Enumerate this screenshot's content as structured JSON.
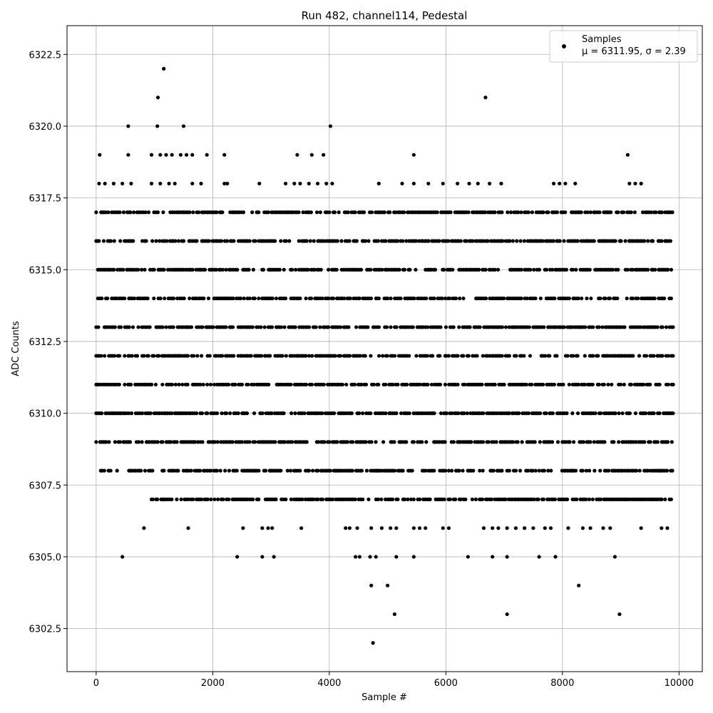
{
  "chart_data": {
    "type": "scatter",
    "title": "Run 482, channel114, Pedestal",
    "xlabel": "Sample #",
    "ylabel": "ADC Counts",
    "xlim": [
      -500,
      10400
    ],
    "ylim": [
      6301.0,
      6323.5
    ],
    "x_ticks": [
      0,
      2000,
      4000,
      6000,
      8000,
      10000
    ],
    "x_tick_labels": [
      "0",
      "2000",
      "4000",
      "6000",
      "8000",
      "10000"
    ],
    "y_ticks": [
      6302.5,
      6305.0,
      6307.5,
      6310.0,
      6312.5,
      6315.0,
      6317.5,
      6320.0,
      6322.5
    ],
    "y_tick_labels": [
      "6302.5",
      "6305.0",
      "6307.5",
      "6310.0",
      "6312.5",
      "6315.0",
      "6317.5",
      "6320.0",
      "6322.5"
    ],
    "grid": true,
    "legend": {
      "placement": "top-right",
      "entries": [
        {
          "label": "Samples",
          "stats": "μ = 6311.95, σ = 2.39"
        }
      ]
    },
    "marker_color": "#000000",
    "series": [
      {
        "name": "Samples",
        "level_ranges": [
          {
            "y": 6311,
            "x_start": 0,
            "x_end": 9900
          },
          {
            "y": 6312,
            "x_start": 0,
            "x_end": 9900
          },
          {
            "y": 6313,
            "x_start": 0,
            "x_end": 9900
          },
          {
            "y": 6314,
            "x_start": 0,
            "x_end": 9900
          },
          {
            "y": 6310,
            "x_start": 0,
            "x_end": 9900
          },
          {
            "y": 6315,
            "x_start": 0,
            "x_end": 9900
          },
          {
            "y": 6316,
            "x_start": 0,
            "x_end": 9900
          },
          {
            "y": 6309,
            "x_start": 0,
            "x_end": 9900
          },
          {
            "y": 6317,
            "x_start": 0,
            "x_end": 9900
          },
          {
            "y": 6308,
            "x_start": 50,
            "x_end": 9900
          },
          {
            "y": 6307,
            "x_start": 950,
            "x_end": 9900
          }
        ],
        "points": [
          [
            450,
            6305
          ],
          [
            2420,
            6305
          ],
          [
            2850,
            6305
          ],
          [
            3050,
            6305
          ],
          [
            4450,
            6305
          ],
          [
            4520,
            6305
          ],
          [
            4700,
            6305
          ],
          [
            4800,
            6305
          ],
          [
            5150,
            6305
          ],
          [
            5450,
            6305
          ],
          [
            6380,
            6305
          ],
          [
            6800,
            6305
          ],
          [
            7050,
            6305
          ],
          [
            7600,
            6305
          ],
          [
            7880,
            6305
          ],
          [
            8900,
            6305
          ],
          [
            4720,
            6304
          ],
          [
            5000,
            6304
          ],
          [
            8280,
            6304
          ],
          [
            5120,
            6303
          ],
          [
            7050,
            6303
          ],
          [
            8980,
            6303
          ],
          [
            4750,
            6302
          ],
          [
            820,
            6306
          ],
          [
            1580,
            6306
          ],
          [
            2520,
            6306
          ],
          [
            2850,
            6306
          ],
          [
            2950,
            6306
          ],
          [
            3020,
            6306
          ],
          [
            3520,
            6306
          ],
          [
            4280,
            6306
          ],
          [
            4350,
            6306
          ],
          [
            4480,
            6306
          ],
          [
            4720,
            6306
          ],
          [
            4900,
            6306
          ],
          [
            5050,
            6306
          ],
          [
            5150,
            6306
          ],
          [
            5450,
            6306
          ],
          [
            5550,
            6306
          ],
          [
            5650,
            6306
          ],
          [
            5950,
            6306
          ],
          [
            6050,
            6306
          ],
          [
            6650,
            6306
          ],
          [
            6800,
            6306
          ],
          [
            6900,
            6306
          ],
          [
            7050,
            6306
          ],
          [
            7200,
            6306
          ],
          [
            7350,
            6306
          ],
          [
            7500,
            6306
          ],
          [
            7700,
            6306
          ],
          [
            7800,
            6306
          ],
          [
            8100,
            6306
          ],
          [
            8350,
            6306
          ],
          [
            8480,
            6306
          ],
          [
            8700,
            6306
          ],
          [
            8820,
            6306
          ],
          [
            9350,
            6306
          ],
          [
            9700,
            6306
          ],
          [
            9800,
            6306
          ],
          [
            60,
            6319
          ],
          [
            550,
            6319
          ],
          [
            950,
            6319
          ],
          [
            1100,
            6319
          ],
          [
            1200,
            6319
          ],
          [
            1300,
            6319
          ],
          [
            1450,
            6319
          ],
          [
            1550,
            6319
          ],
          [
            1650,
            6319
          ],
          [
            1900,
            6319
          ],
          [
            2200,
            6319
          ],
          [
            3450,
            6319
          ],
          [
            3700,
            6319
          ],
          [
            3900,
            6319
          ],
          [
            5450,
            6319
          ],
          [
            9120,
            6319
          ],
          [
            50,
            6318
          ],
          [
            150,
            6318
          ],
          [
            300,
            6318
          ],
          [
            450,
            6318
          ],
          [
            600,
            6318
          ],
          [
            950,
            6318
          ],
          [
            1100,
            6318
          ],
          [
            1250,
            6318
          ],
          [
            1350,
            6318
          ],
          [
            1650,
            6318
          ],
          [
            1800,
            6318
          ],
          [
            2200,
            6318
          ],
          [
            2250,
            6318
          ],
          [
            2800,
            6318
          ],
          [
            3250,
            6318
          ],
          [
            3400,
            6318
          ],
          [
            3500,
            6318
          ],
          [
            3650,
            6318
          ],
          [
            3800,
            6318
          ],
          [
            3950,
            6318
          ],
          [
            4050,
            6318
          ],
          [
            4850,
            6318
          ],
          [
            5250,
            6318
          ],
          [
            5450,
            6318
          ],
          [
            5700,
            6318
          ],
          [
            5950,
            6318
          ],
          [
            6200,
            6318
          ],
          [
            6400,
            6318
          ],
          [
            6550,
            6318
          ],
          [
            6750,
            6318
          ],
          [
            6950,
            6318
          ],
          [
            7850,
            6318
          ],
          [
            7950,
            6318
          ],
          [
            8050,
            6318
          ],
          [
            8220,
            6318
          ],
          [
            9150,
            6318
          ],
          [
            9250,
            6318
          ],
          [
            9350,
            6318
          ],
          [
            550,
            6320
          ],
          [
            1050,
            6320
          ],
          [
            1500,
            6320
          ],
          [
            4020,
            6320
          ],
          [
            1060,
            6321
          ],
          [
            6680,
            6321
          ],
          [
            1160,
            6322
          ]
        ]
      }
    ]
  }
}
